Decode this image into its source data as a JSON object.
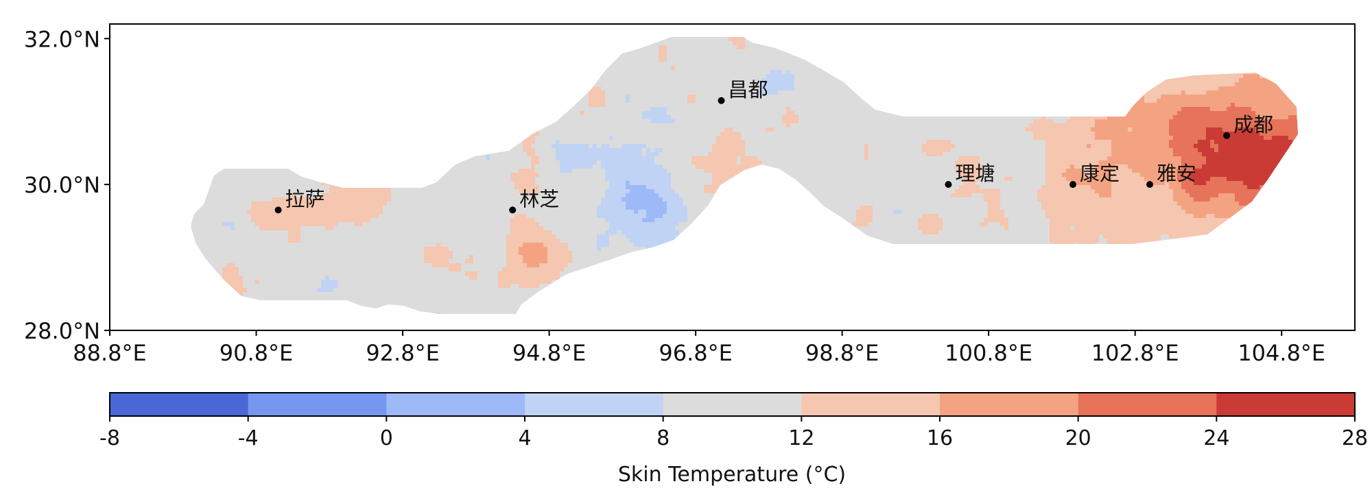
{
  "chart_data": {
    "type": "heatmap",
    "title": "",
    "xlabel": "",
    "ylabel": "",
    "xlim": [
      88.8,
      105.8
    ],
    "ylim": [
      28.0,
      32.2
    ],
    "x_ticks": [
      88.8,
      90.8,
      92.8,
      94.8,
      96.8,
      98.8,
      100.8,
      102.8,
      104.8
    ],
    "x_tick_labels": [
      "88.8°E",
      "90.8°E",
      "92.8°E",
      "94.8°E",
      "96.8°E",
      "98.8°E",
      "100.8°E",
      "102.8°E",
      "104.8°E"
    ],
    "y_ticks": [
      28.0,
      30.0,
      32.0
    ],
    "y_tick_labels": [
      "28.0°N",
      "30.0°N",
      "32.0°N"
    ],
    "colorbar": {
      "label": "Skin Temperature (°C)",
      "levels": [
        -8,
        -4,
        0,
        4,
        8,
        12,
        16,
        20,
        24,
        28
      ],
      "level_labels": [
        "-8",
        "-4",
        "0",
        "4",
        "8",
        "12",
        "16",
        "20",
        "24",
        "28"
      ],
      "colors": [
        "#4a68d6",
        "#7597ef",
        "#9db9f7",
        "#c0d3f5",
        "#dcdcdc",
        "#f5c6b0",
        "#f4a382",
        "#e6735a",
        "#ca3b36"
      ]
    },
    "cities": [
      {
        "name": "拉萨",
        "lon": 91.1,
        "lat": 29.65
      },
      {
        "name": "林芝",
        "lon": 94.3,
        "lat": 29.65
      },
      {
        "name": "昌都",
        "lon": 97.15,
        "lat": 31.15
      },
      {
        "name": "理塘",
        "lon": 100.25,
        "lat": 30.0
      },
      {
        "name": "康定",
        "lon": 101.95,
        "lat": 30.0
      },
      {
        "name": "雅安",
        "lon": 103.0,
        "lat": 30.0
      },
      {
        "name": "成都",
        "lon": 104.05,
        "lat": 30.67
      }
    ],
    "grid": false
  }
}
